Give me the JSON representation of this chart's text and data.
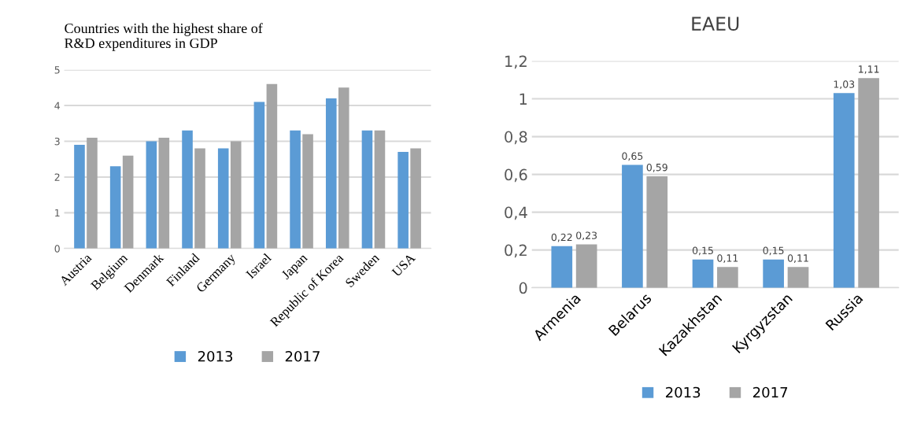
{
  "chart_data": [
    {
      "type": "bar",
      "title": "Countries with the highest share of\nR&D expenditures in GDP",
      "categories": [
        "Austria",
        "Belgium",
        "Denmark",
        "Finland",
        "Germany",
        "Israel",
        "Japan",
        "Republic of Korea",
        "Sweden",
        "USA"
      ],
      "series": [
        {
          "name": "2013",
          "color": "#5b9bd5",
          "values": [
            2.9,
            2.3,
            3.0,
            3.3,
            2.8,
            4.1,
            3.3,
            4.2,
            3.3,
            2.7
          ]
        },
        {
          "name": "2017",
          "color": "#a5a5a5",
          "values": [
            3.1,
            2.6,
            3.1,
            2.8,
            3.0,
            4.6,
            3.2,
            4.5,
            3.3,
            2.8
          ]
        }
      ],
      "ylim": [
        0,
        5
      ],
      "yticks": [
        0,
        1,
        2,
        3,
        4,
        5
      ],
      "grid": "y",
      "legend": "bottom"
    },
    {
      "type": "bar",
      "title": "EAEU",
      "categories": [
        "Armenia",
        "Belarus",
        "Kazakhstan",
        "Kyrgyzstan",
        "Russia"
      ],
      "series": [
        {
          "name": "2013",
          "color": "#5b9bd5",
          "values": [
            0.22,
            0.65,
            0.15,
            0.15,
            1.03
          ],
          "value_labels": [
            "0,22",
            "0,65",
            "0,15",
            "0,15",
            "1,03"
          ]
        },
        {
          "name": "2017",
          "color": "#a5a5a5",
          "values": [
            0.23,
            0.59,
            0.11,
            0.11,
            1.11
          ],
          "value_labels": [
            "0,23",
            "0,59",
            "0,11",
            "0,11",
            "1,11"
          ]
        }
      ],
      "ylim": [
        0,
        1.2
      ],
      "yticks": [
        0,
        {
          "value": 0.2,
          "label": "0,2"
        },
        {
          "value": 0.4,
          "label": "0,4"
        },
        {
          "value": 0.6,
          "label": "0,6"
        },
        {
          "value": 0.8,
          "label": "0,8"
        },
        1,
        {
          "value": 1.2,
          "label": "1,2"
        }
      ],
      "grid": "y",
      "legend": "bottom"
    }
  ]
}
